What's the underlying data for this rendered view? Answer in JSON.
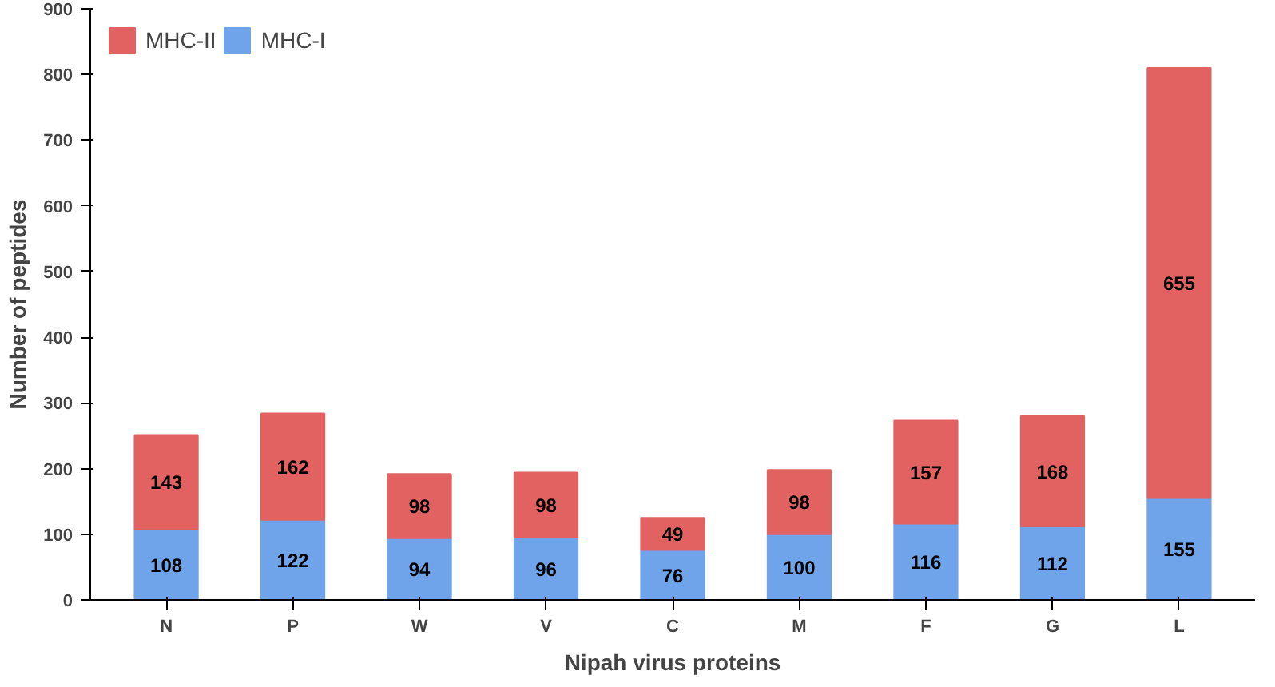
{
  "chart_data": {
    "type": "bar",
    "stacked": true,
    "xlabel": "Nipah virus proteins",
    "ylabel": "Number of peptides",
    "categories": [
      "N",
      "P",
      "W",
      "V",
      "C",
      "M",
      "F",
      "G",
      "L"
    ],
    "series": [
      {
        "name": "MHC-I",
        "color": "#6fa4ea",
        "values": [
          108,
          122,
          94,
          96,
          76,
          100,
          116,
          112,
          155
        ]
      },
      {
        "name": "MHC-II",
        "color": "#e26262",
        "values": [
          143,
          162,
          98,
          98,
          49,
          98,
          157,
          168,
          655
        ]
      }
    ],
    "ylim": [
      0,
      900
    ],
    "yticks": [
      0,
      100,
      200,
      300,
      400,
      500,
      600,
      700,
      800,
      900
    ],
    "data_labels": true,
    "legend": "top left",
    "grid": false
  }
}
